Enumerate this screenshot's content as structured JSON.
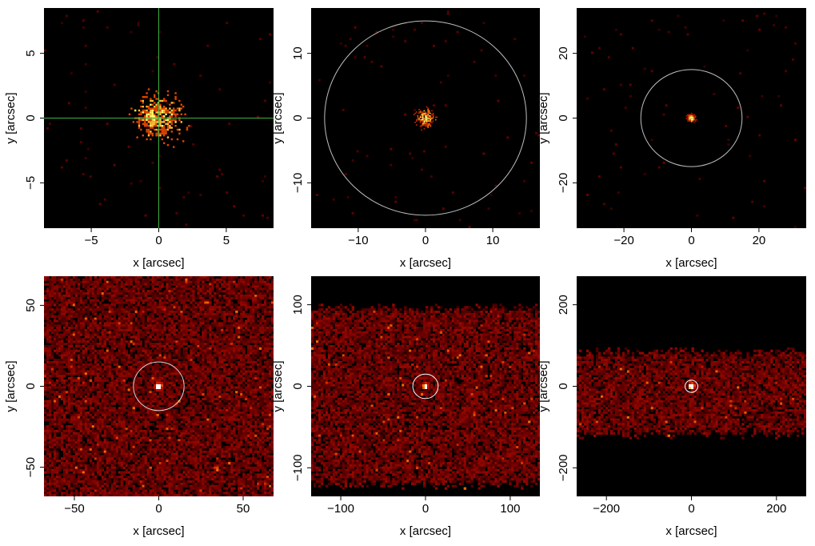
{
  "chart_data": [
    {
      "type": "heatmap",
      "xlabel": "x [arcsec]",
      "ylabel": "y [arcsec]",
      "xlim": [
        -8.5,
        8.5
      ],
      "ylim": [
        -8.5,
        8.5
      ],
      "xticks": [
        -5,
        0,
        5
      ],
      "yticks": [
        -5,
        0,
        5
      ],
      "overlay": "crosshair",
      "overlay_color": "#3fb23f",
      "source": {
        "x": 0,
        "y": 0,
        "spread": 0.8
      },
      "background": "sparse",
      "colors": {
        "background": "#000000",
        "low": "#8b0000",
        "mid": "#ff6a00",
        "high": "#ffff66"
      }
    },
    {
      "type": "heatmap",
      "xlabel": "x [arcsec]",
      "ylabel": "y [arcsec]",
      "xlim": [
        -17,
        17
      ],
      "ylim": [
        -17,
        17
      ],
      "xticks": [
        -10,
        0,
        10
      ],
      "yticks": [
        -10,
        0,
        10
      ],
      "overlay": "circle",
      "circle_radius": 15,
      "overlay_color": "#bfbfbf",
      "source": {
        "x": 0,
        "y": 0,
        "spread": 0.6
      },
      "background": "sparse"
    },
    {
      "type": "heatmap",
      "xlabel": "x [arcsec]",
      "ylabel": "y [arcsec]",
      "xlim": [
        -34,
        34
      ],
      "ylim": [
        -34,
        34
      ],
      "xticks": [
        -20,
        0,
        20
      ],
      "yticks": [
        -20,
        0,
        20
      ],
      "overlay": "circle",
      "circle_radius": 15,
      "overlay_color": "#bfbfbf",
      "source": {
        "x": 0,
        "y": 0,
        "spread": 0.6
      },
      "background": "sparse"
    },
    {
      "type": "heatmap",
      "xlabel": "x [arcsec]",
      "ylabel": "y [arcsec]",
      "xlim": [
        -68,
        68
      ],
      "ylim": [
        -68,
        68
      ],
      "xticks": [
        -50,
        0,
        50
      ],
      "yticks": [
        -50,
        0,
        50
      ],
      "overlay": "circle",
      "circle_radius": 15,
      "overlay_color": "#d9d9d9",
      "source": {
        "x": 0,
        "y": 0,
        "spread": 1.0
      },
      "background": "dense-full"
    },
    {
      "type": "heatmap",
      "xlabel": "x [arcsec]",
      "ylabel": "y [arcsec]",
      "xlim": [
        -135,
        135
      ],
      "ylim": [
        -135,
        135
      ],
      "xticks": [
        -100,
        0,
        100
      ],
      "yticks": [
        -100,
        0,
        100
      ],
      "overlay": "circle",
      "circle_radius": 15,
      "overlay_color": "#ffffff",
      "source": {
        "x": 0,
        "y": 0,
        "spread": 1.5
      },
      "background": "band",
      "band_y": [
        -115,
        90
      ]
    },
    {
      "type": "heatmap",
      "xlabel": "x [arcsec]",
      "ylabel": "y [arcsec]",
      "xlim": [
        -270,
        270
      ],
      "ylim": [
        -270,
        270
      ],
      "xticks": [
        -200,
        0,
        200
      ],
      "yticks": [
        -200,
        0,
        200
      ],
      "overlay": "circle",
      "circle_radius": 15,
      "overlay_color": "#ffffff",
      "source": {
        "x": 0,
        "y": 0,
        "spread": 3
      },
      "background": "band",
      "band_y": [
        -105,
        72
      ]
    }
  ]
}
